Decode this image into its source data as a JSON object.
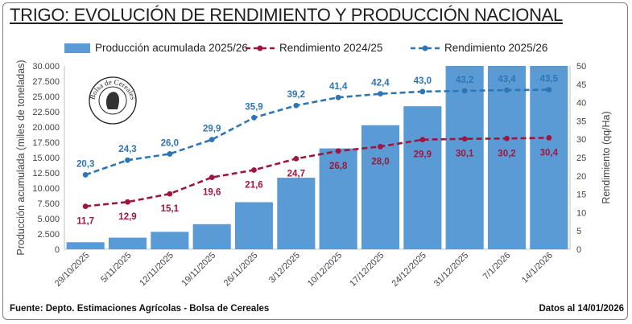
{
  "title": "TRIGO: EVOLUCIÓN DE RENDIMIENTO Y PRODUCCIÓN NACIONAL",
  "logo": {
    "text": "Bolsa de Cereales"
  },
  "footer": {
    "source": "Fuente: Depto. Estimaciones Agrícolas - Bolsa de Cereales",
    "date": "Datos al 14/01/2026"
  },
  "colors": {
    "bars": "#5b9bd5",
    "series_2024": "#a0153e",
    "series_2025": "#2e75b6"
  },
  "chart_data": {
    "type": "bar+line",
    "categories": [
      "29/10/2025",
      "5/11/2025",
      "12/11/2025",
      "19/11/2025",
      "26/11/2025",
      "3/12/2025",
      "10/12/2025",
      "17/12/2025",
      "24/12/2025",
      "31/12/2025",
      "7/1/2026",
      "14/1/2026"
    ],
    "bars": {
      "name": "Producción acumulada 2025/26",
      "values": [
        1150,
        1900,
        2850,
        4100,
        7700,
        11700,
        16500,
        20300,
        23400,
        30000,
        30000,
        30000
      ]
    },
    "series": [
      {
        "name": "Rendimiento 2024/25",
        "values": [
          11.7,
          12.9,
          15.1,
          19.6,
          21.6,
          24.7,
          26.8,
          28.0,
          29.9,
          30.1,
          30.2,
          30.4
        ],
        "labels": [
          "11,7",
          "12,9",
          "15,1",
          "19,6",
          "21,6",
          "24,7",
          "26,8",
          "28,0",
          "29,9",
          "30,1",
          "30,2",
          "30,4"
        ]
      },
      {
        "name": "Rendimiento 2025/26",
        "values": [
          20.3,
          24.3,
          26.0,
          29.9,
          35.9,
          39.2,
          41.4,
          42.4,
          43.0,
          43.2,
          43.4,
          43.5
        ],
        "labels": [
          "20,3",
          "24,3",
          "26,0",
          "29,9",
          "35,9",
          "39,2",
          "41,4",
          "42,4",
          "43,0",
          "43,2",
          "43,4",
          "43,5"
        ]
      }
    ],
    "ylabel_left": "Producción acumulada (miles de toneladas)",
    "ylabel_right": "Rendimiento (qq/Ha)",
    "ylim_left": [
      0,
      30000
    ],
    "ylim_right": [
      0,
      50
    ],
    "yticks_left": [
      "0",
      "2.500",
      "5.000",
      "7.500",
      "10.000",
      "12.500",
      "15.000",
      "17.500",
      "20.000",
      "22.500",
      "25.000",
      "27.500",
      "30.000"
    ],
    "yticks_right": [
      "0",
      "5",
      "10",
      "15",
      "20",
      "25",
      "30",
      "35",
      "40",
      "45",
      "50"
    ],
    "grid": false,
    "legend_position": "top"
  }
}
